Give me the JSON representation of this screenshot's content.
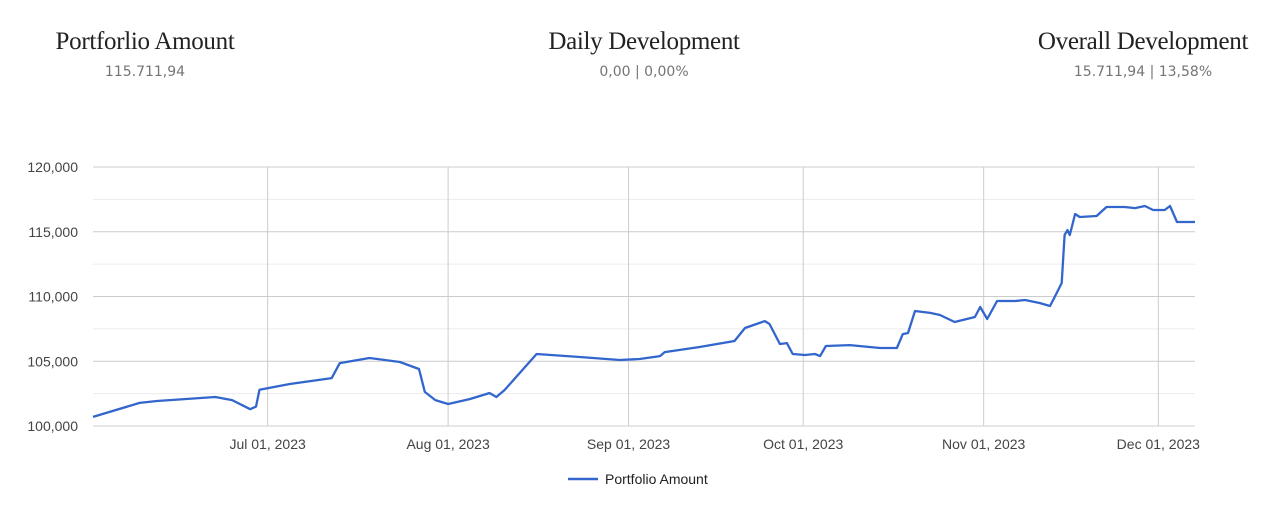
{
  "stats": [
    {
      "title": "Portforlio Amount",
      "value": "115.711,94"
    },
    {
      "title": "Daily Development",
      "value": "0,00 | 0,00%"
    },
    {
      "title": "Overall Development",
      "value": "15.711,94 | 13,58%"
    }
  ],
  "chart_data": {
    "type": "line",
    "title": "",
    "xlabel": "",
    "ylabel": "",
    "x_unit": "days since 2023-06-01",
    "xlim": [
      0,
      189.3
    ],
    "ylim": [
      100000,
      120000
    ],
    "grid": true,
    "legend_position": "bottom",
    "y_ticks": [
      {
        "value": 100000,
        "label": "100,000"
      },
      {
        "value": 105000,
        "label": "105,000"
      },
      {
        "value": 110000,
        "label": "110,000"
      },
      {
        "value": 115000,
        "label": "115,000"
      },
      {
        "value": 120000,
        "label": "120,000"
      }
    ],
    "y_minor_ticks": [
      102500,
      107500,
      112500,
      117500
    ],
    "x_ticks": [
      {
        "value": 30,
        "label": "Jul 01, 2023"
      },
      {
        "value": 61,
        "label": "Aug 01, 2023"
      },
      {
        "value": 92,
        "label": "Sep 01, 2023"
      },
      {
        "value": 122,
        "label": "Oct 01, 2023"
      },
      {
        "value": 153,
        "label": "Nov 01, 2023"
      },
      {
        "value": 183,
        "label": "Dec 01, 2023"
      }
    ],
    "series": [
      {
        "name": "Portfolio Amount",
        "color": "#3366cc",
        "x": [
          0,
          8,
          11,
          21,
          23.9,
          27,
          28,
          28.6,
          33.8,
          41,
          42.4,
          47.5,
          52.7,
          56,
          57,
          58.8,
          61,
          64.7,
          67.6,
          68.1,
          69.3,
          70.7,
          76.2,
          83.6,
          90.5,
          93.9,
          97.4,
          98.2,
          104.2,
          110.2,
          112,
          115.4,
          116.2,
          118,
          119.2,
          120.2,
          122.3,
          124,
          124.9,
          125.9,
          130,
          135.2,
          138.1,
          139.1,
          140,
          141.2,
          143.8,
          145.5,
          148,
          151.5,
          152.4,
          153.6,
          155.3,
          158.4,
          160.1,
          162.6,
          164.4,
          165.2,
          166.4,
          166.9,
          167.4,
          167.8,
          168.7,
          169.5,
          172.4,
          174.1,
          177.2,
          179,
          180.7,
          182.1,
          184.1,
          185,
          186.2,
          187.2,
          189.3
        ],
        "values": [
          100700,
          101780,
          101930,
          102240,
          102000,
          101300,
          101500,
          102800,
          103240,
          103700,
          104860,
          105250,
          104940,
          104400,
          102630,
          102000,
          101700,
          102080,
          102470,
          102550,
          102240,
          102780,
          105560,
          105330,
          105100,
          105170,
          105400,
          105710,
          106100,
          106560,
          107570,
          108100,
          107880,
          106330,
          106400,
          105560,
          105480,
          105560,
          105400,
          106180,
          106250,
          106020,
          106020,
          107100,
          107180,
          108880,
          108730,
          108570,
          108030,
          108420,
          109190,
          108260,
          109650,
          109650,
          109730,
          109500,
          109270,
          109960,
          111040,
          114750,
          115130,
          114750,
          116370,
          116140,
          116220,
          116910,
          116910,
          116830,
          116990,
          116680,
          116680,
          116990,
          115750,
          115750,
          115750
        ]
      }
    ]
  }
}
